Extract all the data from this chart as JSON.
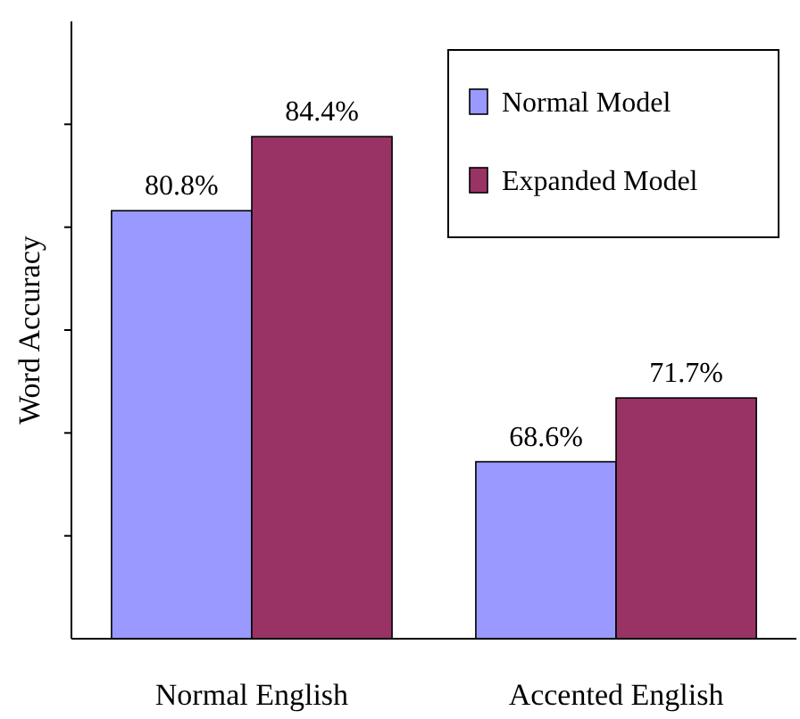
{
  "chart_data": {
    "type": "bar",
    "ylabel": "Word Accuracy",
    "categories": [
      "Normal English",
      "Accented English"
    ],
    "series": [
      {
        "name": "Normal Model",
        "color": "#9999ff",
        "values": [
          80.8,
          68.6
        ],
        "value_labels": [
          "80.8%",
          "68.6%"
        ]
      },
      {
        "name": "Expanded Model",
        "color": "#993366",
        "values": [
          84.4,
          71.7
        ],
        "value_labels": [
          "84.4%",
          "71.7%"
        ]
      }
    ],
    "ylim": [
      60,
      90
    ],
    "yticks": [
      {
        "value": 65,
        "label": null
      },
      {
        "value": 70,
        "label": null
      },
      {
        "value": 75,
        "label": null
      },
      {
        "value": 80,
        "label": null
      },
      {
        "value": 85,
        "label": null
      }
    ],
    "grid": false,
    "legend": "top right"
  }
}
